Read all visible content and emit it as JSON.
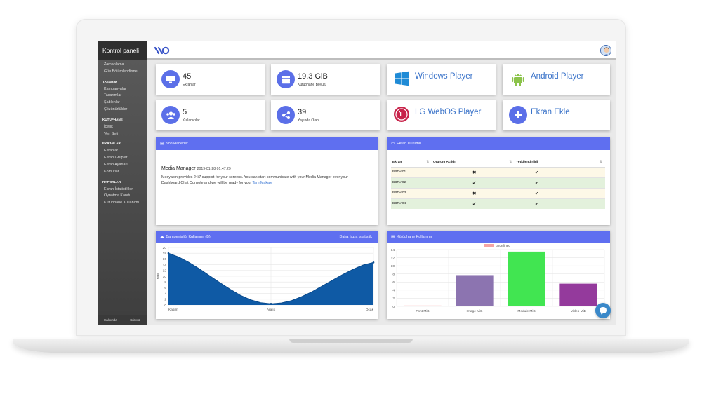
{
  "sidebar": {
    "title": "Kontrol paneli",
    "top_items": [
      "Zamanlama",
      "Gün Bölümlendirme"
    ],
    "groups": [
      {
        "head": "TASARIM",
        "items": [
          "Kampanyalar",
          "Tasarımlar",
          "Şablonlar",
          "Çözünürlükler"
        ]
      },
      {
        "head": "KÜTÜPHANE",
        "items": [
          "İçerik",
          "Veri Seti"
        ]
      },
      {
        "head": "EKRANLAR",
        "items": [
          "Ekranlar",
          "Ekran Grupları",
          "Ekran Ayarları",
          "Komutlar"
        ]
      },
      {
        "head": "RAPORLAR",
        "items": [
          "Ekran İstatistikleri",
          "Oynatma Kanıtı",
          "Kütüphane Kullanımı"
        ]
      }
    ],
    "footer": [
      "Hakkında",
      "Kılavuz"
    ]
  },
  "stats": [
    {
      "value": "45",
      "label": "Ekranlar",
      "icon": "monitor-icon"
    },
    {
      "value": "19.3 GiB",
      "label": "Kütüphane Boyutu",
      "icon": "server-icon"
    },
    {
      "value": "5",
      "label": "Kullanıcılar",
      "icon": "users-icon"
    },
    {
      "value": "39",
      "label": "Yayında Olan",
      "icon": "share-icon"
    }
  ],
  "players": [
    {
      "label": "Windows Player",
      "icon": "windows-icon",
      "color": "#1f8bd6"
    },
    {
      "label": "Android Player",
      "icon": "android-icon",
      "color": "#8bc34a"
    },
    {
      "label": "LG WebOS Player",
      "icon": "lg-icon",
      "color": "#c8234a"
    },
    {
      "label": "Ekran Ekle",
      "icon": "plus-icon",
      "color": "#5b6fe8"
    }
  ],
  "news": {
    "header": "Son Haberler",
    "title": "Media Manager",
    "date": "2019-01-28 01:47:29",
    "body": "Medyapin provides 24/7 support for your screens. You can start communicate with your Media Manager over your Dashboard Chat Console and we will be ready for you.",
    "link": "Tam Makale"
  },
  "screen_status": {
    "header": "Ekran Durumu",
    "columns": [
      "Ekran",
      "Oturum Açıldı",
      "Yetkilendirildi"
    ],
    "rows": [
      {
        "name": "BBTV-01",
        "logged": "✖",
        "auth": "✔"
      },
      {
        "name": "BBTV-02",
        "logged": "✔",
        "auth": "✔"
      },
      {
        "name": "BBTV-03",
        "logged": "✖",
        "auth": "✔"
      },
      {
        "name": "BBTV-04",
        "logged": "✔",
        "auth": "✔"
      }
    ]
  },
  "bandwidth": {
    "header": "Bantgenişliği Kullanımı (B)",
    "more": "Daha fazla istatistik",
    "colors": {
      "fill": "#0f5aa5",
      "stroke": "#0a4a8c"
    }
  },
  "library": {
    "header": "Kütüphane Kullanımı"
  },
  "chart_data": [
    {
      "type": "area",
      "categories": [
        "Kasım",
        "Aralık",
        "Ocak"
      ],
      "x": [
        0,
        0.05,
        0.1,
        0.15,
        0.2,
        0.25,
        0.3,
        0.35,
        0.4,
        0.45,
        0.5,
        0.55,
        0.6,
        0.65,
        0.7,
        0.75,
        0.8,
        0.85,
        0.9,
        0.95,
        1.0
      ],
      "values": [
        18,
        16.7,
        14.8,
        12.6,
        10.2,
        7.8,
        5.5,
        3.4,
        1.8,
        0.8,
        0.4,
        0.7,
        1.5,
        2.9,
        4.6,
        6.6,
        8.6,
        10.6,
        12.4,
        13.9,
        14.8
      ],
      "ylabel": "MiB",
      "ylim": [
        0,
        20
      ],
      "yticks": [
        0,
        2,
        4,
        6,
        8,
        10,
        12,
        14,
        16,
        18,
        20
      ],
      "grid": true
    },
    {
      "type": "bar",
      "categories": [
        "Font MiB",
        "Image MiB",
        "Module MiB",
        "Video MiB"
      ],
      "values": [
        0.2,
        7.7,
        13.5,
        5.6
      ],
      "colors": [
        "#f4a4a4",
        "#8c74b0",
        "#41e551",
        "#943a9c"
      ],
      "legend": "undefined",
      "legend_color": "#f4a4a4",
      "ylim": [
        0,
        14
      ],
      "yticks": [
        0,
        2,
        4,
        6,
        8,
        10,
        12,
        14
      ],
      "grid": true
    }
  ]
}
